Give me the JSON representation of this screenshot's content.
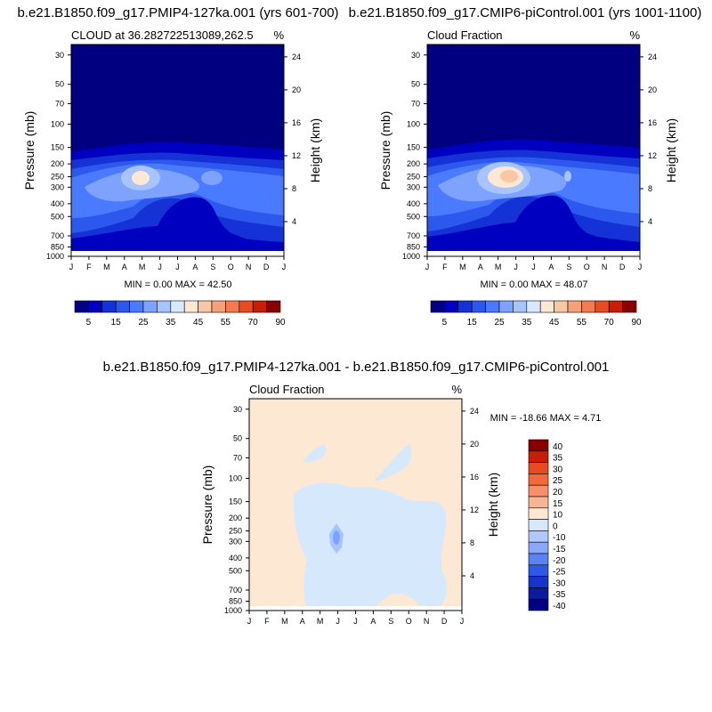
{
  "chart_data": [
    {
      "type": "heatmap",
      "title": "b.e21.B1850.f09_g17.PMIP4-127ka.001 (yrs 601-700)",
      "subtitle_left": "CLOUD at 36.282722513089,262.5",
      "subtitle_right": "%",
      "ylabel": "Pressure (mb)",
      "ylabel_right": "Height (km)",
      "x_ticks": [
        "J",
        "F",
        "M",
        "A",
        "M",
        "J",
        "J",
        "A",
        "S",
        "O",
        "N",
        "D",
        "J"
      ],
      "y_ticks": [
        "30",
        "50",
        "70",
        "100",
        "150",
        "200",
        "250",
        "300",
        "400",
        "500",
        "700",
        "850",
        "1000"
      ],
      "y_ticks_right": [
        "24",
        "20",
        "16",
        "12",
        "8",
        "4"
      ],
      "stats": "MIN =   0.00 MAX =  42.50",
      "min": 0.0,
      "max": 42.5,
      "colorbar_labels": [
        "5",
        "15",
        "25",
        "35",
        "45",
        "55",
        "70",
        "90"
      ]
    },
    {
      "type": "heatmap",
      "title": "b.e21.B1850.f09_g17.CMIP6-piControl.001 (yrs 1001-1100)",
      "subtitle_left": "Cloud Fraction",
      "subtitle_right": "%",
      "ylabel": "Pressure (mb)",
      "ylabel_right": "Height (km)",
      "x_ticks": [
        "J",
        "F",
        "M",
        "A",
        "M",
        "J",
        "J",
        "A",
        "S",
        "O",
        "N",
        "D",
        "J"
      ],
      "y_ticks": [
        "30",
        "50",
        "70",
        "100",
        "150",
        "200",
        "250",
        "300",
        "400",
        "500",
        "700",
        "850",
        "1000"
      ],
      "y_ticks_right": [
        "24",
        "20",
        "16",
        "12",
        "8",
        "4"
      ],
      "stats": "MIN =   0.00 MAX =  48.07",
      "min": 0.0,
      "max": 48.07,
      "colorbar_labels": [
        "5",
        "15",
        "25",
        "35",
        "45",
        "55",
        "70",
        "90"
      ]
    },
    {
      "type": "heatmap",
      "title": "b.e21.B1850.f09_g17.PMIP4-127ka.001 - b.e21.B1850.f09_g17.CMIP6-piControl.001",
      "subtitle_left": "Cloud Fraction",
      "subtitle_right": "%",
      "ylabel": "Pressure (mb)",
      "ylabel_right": "Height (km)",
      "x_ticks": [
        "J",
        "F",
        "M",
        "A",
        "M",
        "J",
        "J",
        "A",
        "S",
        "O",
        "N",
        "D",
        "J"
      ],
      "y_ticks": [
        "30",
        "50",
        "70",
        "100",
        "150",
        "200",
        "250",
        "300",
        "400",
        "500",
        "700",
        "850",
        "1000"
      ],
      "y_ticks_right": [
        "24",
        "20",
        "16",
        "12",
        "8",
        "4"
      ],
      "stats": "MIN = -18.66 MAX =   4.71",
      "min": -18.66,
      "max": 4.71,
      "colorbar_labels": [
        "40",
        "35",
        "30",
        "25",
        "20",
        "15",
        "10",
        "0",
        "-10",
        "-15",
        "-20",
        "-25",
        "-30",
        "-35",
        "-40"
      ]
    }
  ],
  "colors": {
    "seq": [
      "#000080",
      "#0000c0",
      "#1432d6",
      "#2d58ee",
      "#4a7aff",
      "#7ea2ff",
      "#a8c4ff",
      "#d8e8ff",
      "#fde8d4",
      "#f9c6a6",
      "#f5a27a",
      "#f47a4f",
      "#e84a22",
      "#c81e06",
      "#8a0000"
    ],
    "diff": [
      "#8a0000",
      "#c81e06",
      "#e84a22",
      "#f26a3a",
      "#f5906a",
      "#f9b496",
      "#fde8d4",
      "#d6e8fb",
      "#b0c8fb",
      "#8aa8f8",
      "#5a82f5",
      "#3058e6",
      "#1436c8",
      "#0a1ca0",
      "#000080"
    ]
  }
}
